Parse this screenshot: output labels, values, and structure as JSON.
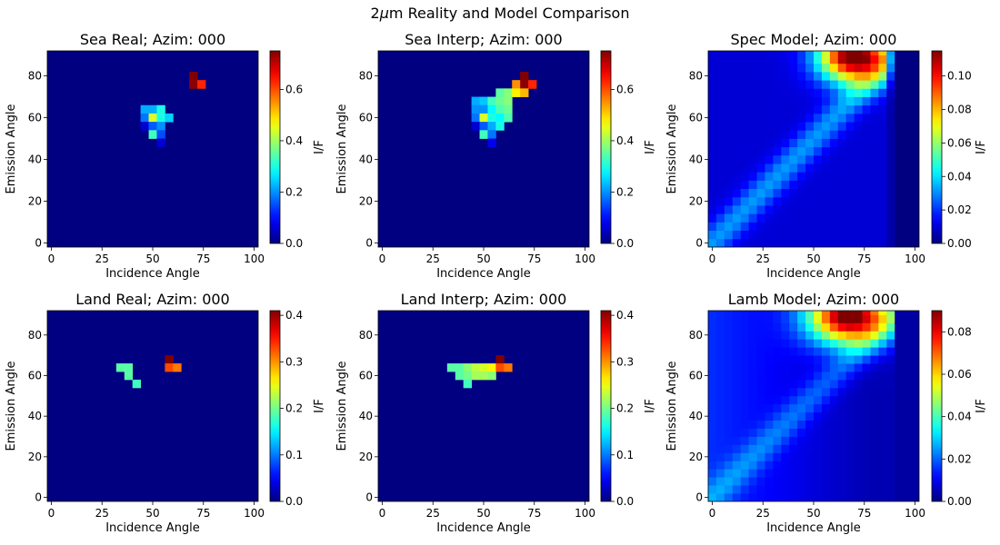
{
  "figure": {
    "suptitle_prefix": "2",
    "suptitle_mu": "μ",
    "suptitle_suffix": "m Reality and Model Comparison"
  },
  "chart_data": [
    {
      "type": "heatmap",
      "title": "Sea Real; Azim: 000",
      "xlabel": "Incidence Angle",
      "ylabel": "Emission Angle",
      "colorbar_label": "I/F",
      "colormap": "jet",
      "grid": false,
      "xlim": [
        -2,
        102
      ],
      "ylim": [
        -2,
        92
      ],
      "xticks": [
        0,
        25,
        50,
        75,
        100
      ],
      "yticks": [
        0,
        20,
        40,
        60,
        80
      ],
      "clim": [
        0,
        0.75
      ],
      "cticks": [
        0.0,
        0.2,
        0.4,
        0.6
      ],
      "cell": [
        4,
        4
      ],
      "cells": [
        {
          "x": 70,
          "y": 80,
          "v": 0.75
        },
        {
          "x": 70,
          "y": 76,
          "v": 0.74
        },
        {
          "x": 74,
          "y": 76,
          "v": 0.63
        },
        {
          "x": 46,
          "y": 64,
          "v": 0.22
        },
        {
          "x": 50,
          "y": 64,
          "v": 0.22
        },
        {
          "x": 54,
          "y": 64,
          "v": 0.3
        },
        {
          "x": 46,
          "y": 60,
          "v": 0.18
        },
        {
          "x": 50,
          "y": 60,
          "v": 0.44
        },
        {
          "x": 54,
          "y": 60,
          "v": 0.3
        },
        {
          "x": 58,
          "y": 60,
          "v": 0.25
        },
        {
          "x": 46,
          "y": 56,
          "v": 0.06
        },
        {
          "x": 50,
          "y": 56,
          "v": 0.16
        },
        {
          "x": 54,
          "y": 56,
          "v": 0.2
        },
        {
          "x": 50,
          "y": 52,
          "v": 0.33
        },
        {
          "x": 54,
          "y": 52,
          "v": 0.15
        },
        {
          "x": 54,
          "y": 48,
          "v": 0.06
        }
      ]
    },
    {
      "type": "heatmap",
      "title": "Sea Interp; Azim: 000",
      "xlabel": "Incidence Angle",
      "ylabel": "Emission Angle",
      "colorbar_label": "I/F",
      "colormap": "jet",
      "grid": false,
      "xlim": [
        -2,
        102
      ],
      "ylim": [
        -2,
        92
      ],
      "xticks": [
        0,
        25,
        50,
        75,
        100
      ],
      "yticks": [
        0,
        20,
        40,
        60,
        80
      ],
      "clim": [
        0,
        0.75
      ],
      "cticks": [
        0.0,
        0.2,
        0.4,
        0.6
      ],
      "cell": [
        4,
        4
      ],
      "cells": [
        {
          "x": 70,
          "y": 80,
          "v": 0.75
        },
        {
          "x": 66,
          "y": 76,
          "v": 0.55
        },
        {
          "x": 70,
          "y": 76,
          "v": 0.74
        },
        {
          "x": 74,
          "y": 76,
          "v": 0.63
        },
        {
          "x": 58,
          "y": 72,
          "v": 0.35
        },
        {
          "x": 62,
          "y": 72,
          "v": 0.38
        },
        {
          "x": 66,
          "y": 72,
          "v": 0.48
        },
        {
          "x": 70,
          "y": 72,
          "v": 0.52
        },
        {
          "x": 46,
          "y": 68,
          "v": 0.22
        },
        {
          "x": 50,
          "y": 68,
          "v": 0.24
        },
        {
          "x": 54,
          "y": 68,
          "v": 0.33
        },
        {
          "x": 58,
          "y": 68,
          "v": 0.36
        },
        {
          "x": 62,
          "y": 68,
          "v": 0.38
        },
        {
          "x": 46,
          "y": 64,
          "v": 0.2
        },
        {
          "x": 50,
          "y": 64,
          "v": 0.2
        },
        {
          "x": 54,
          "y": 64,
          "v": 0.28
        },
        {
          "x": 58,
          "y": 64,
          "v": 0.34
        },
        {
          "x": 62,
          "y": 64,
          "v": 0.36
        },
        {
          "x": 46,
          "y": 60,
          "v": 0.18
        },
        {
          "x": 50,
          "y": 60,
          "v": 0.44
        },
        {
          "x": 54,
          "y": 60,
          "v": 0.3
        },
        {
          "x": 58,
          "y": 60,
          "v": 0.28
        },
        {
          "x": 62,
          "y": 60,
          "v": 0.34
        },
        {
          "x": 46,
          "y": 56,
          "v": 0.06
        },
        {
          "x": 50,
          "y": 56,
          "v": 0.16
        },
        {
          "x": 54,
          "y": 56,
          "v": 0.22
        },
        {
          "x": 58,
          "y": 56,
          "v": 0.3
        },
        {
          "x": 50,
          "y": 52,
          "v": 0.33
        },
        {
          "x": 54,
          "y": 52,
          "v": 0.18
        },
        {
          "x": 54,
          "y": 48,
          "v": 0.08
        }
      ]
    },
    {
      "type": "heatmap",
      "title": "Spec Model; Azim: 000",
      "xlabel": "Incidence Angle",
      "ylabel": "Emission Angle",
      "colorbar_label": "I/F",
      "colormap": "jet",
      "grid": false,
      "xlim": [
        -2,
        102
      ],
      "ylim": [
        -2,
        92
      ],
      "xticks": [
        0,
        25,
        50,
        75,
        100
      ],
      "yticks": [
        0,
        20,
        40,
        60,
        80
      ],
      "clim": [
        0,
        0.115
      ],
      "cticks": [
        0.0,
        0.02,
        0.04,
        0.06,
        0.08,
        0.1
      ],
      "cell": [
        4,
        4
      ],
      "model": {
        "kind": "specular",
        "peak": 0.115,
        "peak_x": 70,
        "peak_y": 90,
        "spread_x": 12,
        "spread_y": 9,
        "band_value": 0.022,
        "background": 0.012,
        "cutoff_x": 90
      }
    },
    {
      "type": "heatmap",
      "title": "Land Real; Azim: 000",
      "xlabel": "Incidence Angle",
      "ylabel": "Emission Angle",
      "colorbar_label": "I/F",
      "colormap": "jet",
      "grid": false,
      "xlim": [
        -2,
        102
      ],
      "ylim": [
        -2,
        92
      ],
      "xticks": [
        0,
        25,
        50,
        75,
        100
      ],
      "yticks": [
        0,
        20,
        40,
        60,
        80
      ],
      "clim": [
        0,
        0.41
      ],
      "cticks": [
        0.0,
        0.1,
        0.2,
        0.3,
        0.4
      ],
      "cell": [
        4,
        4
      ],
      "cells": [
        {
          "x": 58,
          "y": 68,
          "v": 0.41
        },
        {
          "x": 58,
          "y": 64,
          "v": 0.33
        },
        {
          "x": 62,
          "y": 64,
          "v": 0.31
        },
        {
          "x": 34,
          "y": 64,
          "v": 0.19
        },
        {
          "x": 38,
          "y": 64,
          "v": 0.19
        },
        {
          "x": 38,
          "y": 60,
          "v": 0.19
        },
        {
          "x": 42,
          "y": 56,
          "v": 0.18
        }
      ]
    },
    {
      "type": "heatmap",
      "title": "Land Interp; Azim: 000",
      "xlabel": "Incidence Angle",
      "ylabel": "Emission Angle",
      "colorbar_label": "I/F",
      "colormap": "jet",
      "grid": false,
      "xlim": [
        -2,
        102
      ],
      "ylim": [
        -2,
        92
      ],
      "xticks": [
        0,
        25,
        50,
        75,
        100
      ],
      "yticks": [
        0,
        20,
        40,
        60,
        80
      ],
      "clim": [
        0,
        0.41
      ],
      "cticks": [
        0.0,
        0.1,
        0.2,
        0.3,
        0.4
      ],
      "cell": [
        4,
        4
      ],
      "cells": [
        {
          "x": 58,
          "y": 68,
          "v": 0.41
        },
        {
          "x": 34,
          "y": 64,
          "v": 0.19
        },
        {
          "x": 38,
          "y": 64,
          "v": 0.19
        },
        {
          "x": 42,
          "y": 64,
          "v": 0.21
        },
        {
          "x": 46,
          "y": 64,
          "v": 0.23
        },
        {
          "x": 50,
          "y": 64,
          "v": 0.24
        },
        {
          "x": 54,
          "y": 64,
          "v": 0.26
        },
        {
          "x": 58,
          "y": 64,
          "v": 0.33
        },
        {
          "x": 62,
          "y": 64,
          "v": 0.31
        },
        {
          "x": 38,
          "y": 60,
          "v": 0.19
        },
        {
          "x": 42,
          "y": 60,
          "v": 0.2
        },
        {
          "x": 46,
          "y": 60,
          "v": 0.22
        },
        {
          "x": 50,
          "y": 60,
          "v": 0.22
        },
        {
          "x": 54,
          "y": 60,
          "v": 0.21
        },
        {
          "x": 42,
          "y": 56,
          "v": 0.18
        }
      ]
    },
    {
      "type": "heatmap",
      "title": "Lamb Model; Azim: 000",
      "xlabel": "Incidence Angle",
      "ylabel": "Emission Angle",
      "colorbar_label": "I/F",
      "colormap": "jet",
      "grid": false,
      "xlim": [
        -2,
        102
      ],
      "ylim": [
        -2,
        92
      ],
      "xticks": [
        0,
        25,
        50,
        75,
        100
      ],
      "yticks": [
        0,
        20,
        40,
        60,
        80
      ],
      "clim": [
        0,
        0.09
      ],
      "cticks": [
        0.0,
        0.02,
        0.04,
        0.06,
        0.08
      ],
      "cell": [
        4,
        4
      ],
      "model": {
        "kind": "lambert",
        "peak": 0.09,
        "peak_x": 68,
        "peak_y": 90,
        "spread_x": 14,
        "spread_y": 10,
        "band_value": 0.012,
        "background": 0.015,
        "cutoff_x": 90
      }
    }
  ]
}
